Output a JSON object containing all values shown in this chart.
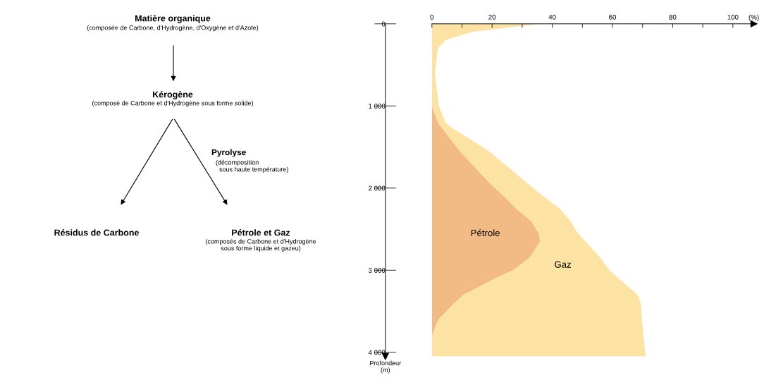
{
  "chart_data": [
    {
      "type": "other",
      "annotations": [
        "Matière organique",
        "(composée de Carbone, d'Hydrogène, d'Oxygène et d'Azote)",
        "Kérogène",
        "(composé de Carbone et d'Hydrogène sous forme solide)",
        "Pyrolyse",
        "(décomposition\n  sous haute température)",
        "Résidus de Carbone",
        "Pétrole et Gaz",
        "(composés de Carbone et d'Hydrogène\nsous forme liquide et gazeu)"
      ]
    },
    {
      "type": "area",
      "orientation": "horizontal",
      "stacked": true,
      "x": [
        0,
        100,
        200,
        300,
        600,
        1000,
        1200,
        1250,
        1550,
        1950,
        2100,
        2250,
        2400,
        2550,
        2650,
        2850,
        3000,
        3100,
        3300,
        3400,
        3600,
        3800,
        4050
      ],
      "series": [
        {
          "name": "Pétrole",
          "color": "#f2bb85",
          "values": [
            0,
            0,
            0,
            0,
            0,
            0,
            2,
            3,
            9.3,
            19.5,
            24,
            28,
            33,
            35.5,
            36,
            32.5,
            27,
            21,
            10.5,
            7.5,
            2.2,
            0,
            0
          ]
        },
        {
          "name": "Gaz",
          "color": "#fde3a3",
          "values": [
            36,
            13,
            4.5,
            2,
            1,
            2.3,
            2.5,
            3,
            9.7,
            12.5,
            13,
            14.5,
            13,
            13,
            15,
            23.5,
            32,
            41,
            57.9,
            61.9,
            67.6,
            70.3,
            71
          ]
        }
      ],
      "xlim": [
        0,
        107
      ],
      "xticks": [
        0,
        {
          "value": 10,
          "label": null
        },
        20,
        {
          "value": 30,
          "label": null
        },
        40,
        {
          "value": 50,
          "label": null
        },
        60,
        {
          "value": 70,
          "label": null
        },
        80,
        {
          "value": 90,
          "label": null
        },
        100
      ],
      "ylim": [
        4050,
        0
      ],
      "yticks": [
        0,
        {
          "value": 1000,
          "label": "1 000"
        },
        {
          "value": 2000,
          "label": "2 000"
        },
        {
          "value": 3000,
          "label": "3 000"
        },
        {
          "value": 4000,
          "label": "4 000"
        }
      ],
      "xlabel": "(%)",
      "ylabel": "Profondeur\n(m)"
    }
  ]
}
